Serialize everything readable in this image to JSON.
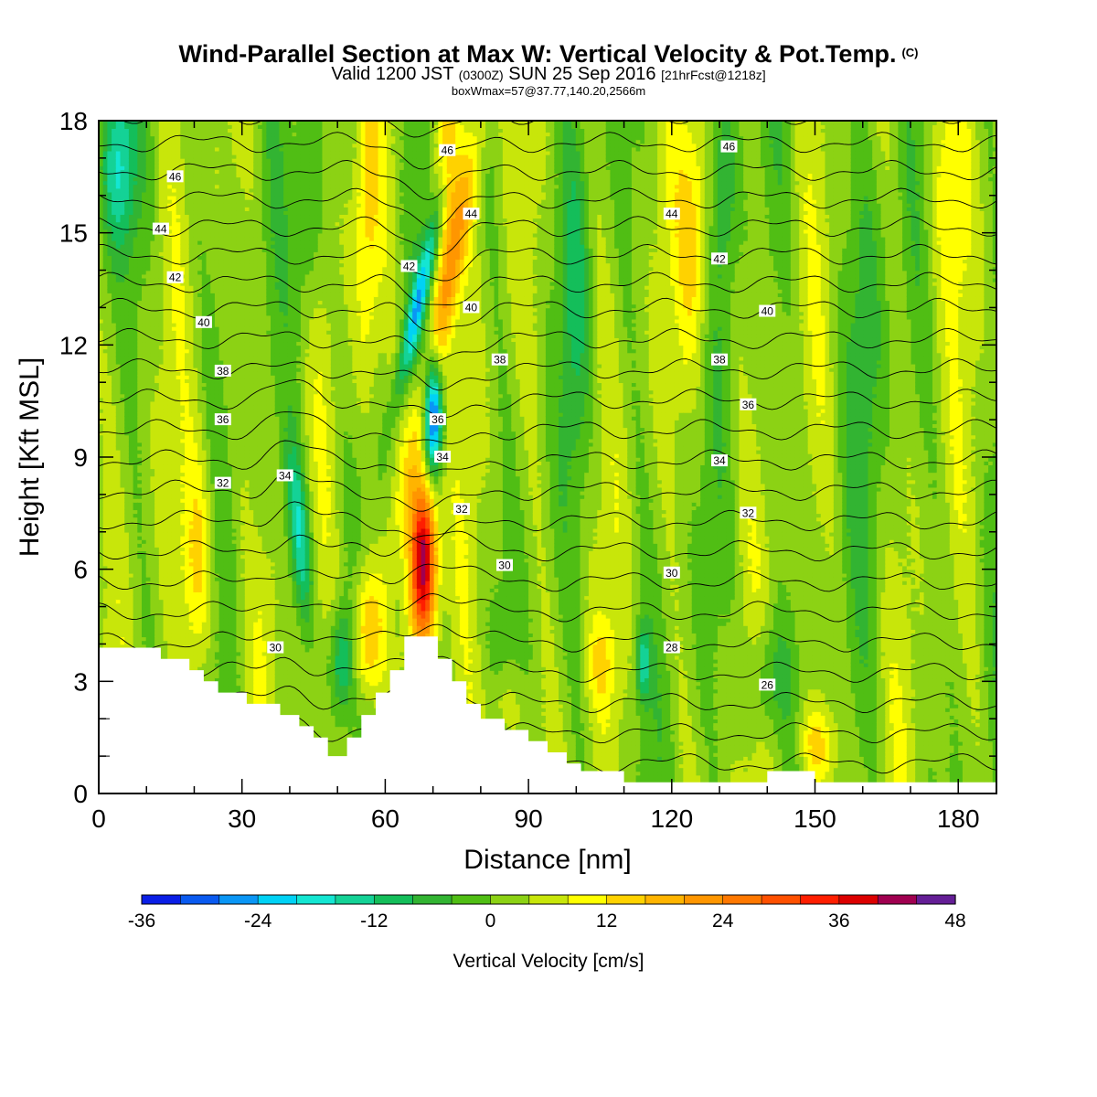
{
  "header": {
    "title": "Wind-Parallel Section at Max W: Vertical Velocity & Pot.Temp.",
    "copyright": "(C)",
    "valid_main": "Valid 1200 JST",
    "valid_zone": "(0300Z)",
    "valid_date": "SUN 25 Sep 2016",
    "valid_fcst": "[21hrFcst@1218z]",
    "box_info": "boxWmax=57@37.77,140.20,2566m"
  },
  "chart_data": {
    "type": "heatmap",
    "xlabel": "Distance [nm]",
    "ylabel": "Height [Kft MSL]",
    "xlim": [
      0,
      188
    ],
    "ylim": [
      0,
      18
    ],
    "x_ticks": [
      0,
      30,
      60,
      90,
      120,
      150,
      180
    ],
    "y_ticks": [
      0,
      3,
      6,
      9,
      12,
      15,
      18
    ],
    "field": "Vertical Velocity [cm/s]",
    "colorbar": {
      "title": "Vertical Velocity [cm/s]",
      "levels": [
        -36,
        -32,
        -28,
        -24,
        -20,
        -16,
        -12,
        -8,
        -4,
        0,
        4,
        8,
        12,
        16,
        20,
        24,
        28,
        32,
        36,
        40,
        44,
        48
      ],
      "tick_values": [
        -36,
        -24,
        -12,
        0,
        12,
        24,
        36,
        48
      ],
      "colors": [
        "#0a1ee6",
        "#0a5af0",
        "#0a96f5",
        "#00d2f5",
        "#14e6d2",
        "#14d296",
        "#14be5a",
        "#32b432",
        "#50be14",
        "#8cd214",
        "#c8e60a",
        "#ffff00",
        "#ffd200",
        "#ffb400",
        "#ff9600",
        "#ff7800",
        "#ff5000",
        "#ff1e00",
        "#dc0000",
        "#a00050",
        "#641e96"
      ],
      "position": "bottom"
    },
    "terrain_kft": [
      [
        0,
        3.9
      ],
      [
        7,
        3.9
      ],
      [
        13,
        3.9
      ],
      [
        13,
        3.6
      ],
      [
        19,
        3.6
      ],
      [
        19,
        3.3
      ],
      [
        22,
        3.3
      ],
      [
        22,
        3.0
      ],
      [
        25,
        3.0
      ],
      [
        25,
        2.7
      ],
      [
        31,
        2.7
      ],
      [
        31,
        2.4
      ],
      [
        38,
        2.4
      ],
      [
        38,
        2.1
      ],
      [
        42,
        2.1
      ],
      [
        42,
        1.8
      ],
      [
        45,
        1.8
      ],
      [
        45,
        1.5
      ],
      [
        48,
        1.5
      ],
      [
        48,
        1.0
      ],
      [
        52,
        1.0
      ],
      [
        52,
        1.5
      ],
      [
        55,
        1.5
      ],
      [
        55,
        2.1
      ],
      [
        58,
        2.1
      ],
      [
        58,
        2.7
      ],
      [
        61,
        2.7
      ],
      [
        61,
        3.3
      ],
      [
        64,
        3.3
      ],
      [
        64,
        4.2
      ],
      [
        71,
        4.2
      ],
      [
        71,
        3.6
      ],
      [
        74,
        3.6
      ],
      [
        74,
        3.0
      ],
      [
        77,
        3.0
      ],
      [
        77,
        2.4
      ],
      [
        80,
        2.4
      ],
      [
        80,
        2.0
      ],
      [
        85,
        2.0
      ],
      [
        85,
        1.7
      ],
      [
        90,
        1.7
      ],
      [
        90,
        1.4
      ],
      [
        94,
        1.4
      ],
      [
        94,
        1.1
      ],
      [
        98,
        1.1
      ],
      [
        98,
        0.8
      ],
      [
        101,
        0.8
      ],
      [
        101,
        0.6
      ],
      [
        110,
        0.6
      ],
      [
        110,
        0.3
      ],
      [
        140,
        0.3
      ],
      [
        140,
        0.6
      ],
      [
        150,
        0.6
      ],
      [
        150,
        0.3
      ],
      [
        188,
        0.3
      ]
    ],
    "updrafts": [
      {
        "x": 36,
        "y": 5.2,
        "w": 3,
        "sx": 2.2,
        "sy": 1.8,
        "tilt": 0
      },
      {
        "x": 21,
        "y": 6.2,
        "w": 12,
        "sx": 2.5,
        "sy": 2.2,
        "tilt": 0
      },
      {
        "x": 68,
        "y": 6.3,
        "w": 42,
        "sx": 2.0,
        "sy": 1.6,
        "tilt": 0
      },
      {
        "x": 72,
        "y": 13.0,
        "w": 16,
        "sx": 2.0,
        "sy": 4.0,
        "tilt": 1.6
      },
      {
        "x": 56,
        "y": 4.2,
        "w": 18,
        "sx": 2.5,
        "sy": 1.4,
        "tilt": 0
      },
      {
        "x": 73,
        "y": 17.0,
        "w": 14,
        "sx": 1.8,
        "sy": 2.2,
        "tilt": 0
      },
      {
        "x": 56,
        "y": 15.0,
        "w": 10,
        "sx": 2.0,
        "sy": 3.2,
        "tilt": 0
      },
      {
        "x": 125,
        "y": 15.0,
        "w": 12,
        "sx": 2.5,
        "sy": 2.5,
        "tilt": 0
      },
      {
        "x": 150,
        "y": 1.3,
        "w": 12,
        "sx": 3.0,
        "sy": 0.8,
        "tilt": 0
      },
      {
        "x": 85,
        "y": 2.2,
        "w": 8,
        "sx": 3.0,
        "sy": 0.8,
        "tilt": 0
      },
      {
        "x": 178,
        "y": 16.5,
        "w": 8,
        "sx": 3.0,
        "sy": 2.2,
        "tilt": 0
      },
      {
        "x": 105,
        "y": 3.5,
        "w": 8,
        "sx": 2.0,
        "sy": 0.8,
        "tilt": 0
      }
    ],
    "downdrafts": [
      {
        "x": 42,
        "y": 7.0,
        "w": -20,
        "sx": 1.5,
        "sy": 1.7,
        "tilt": -0.6
      },
      {
        "x": 70,
        "y": 10.2,
        "w": -34,
        "sx": 1.3,
        "sy": 1.1,
        "tilt": 0
      },
      {
        "x": 67,
        "y": 13.2,
        "w": -22,
        "sx": 1.2,
        "sy": 1.8,
        "tilt": 1.7
      },
      {
        "x": 51,
        "y": 3.6,
        "w": -16,
        "sx": 1.8,
        "sy": 1.0,
        "tilt": 0
      },
      {
        "x": 4,
        "y": 16.8,
        "w": -16,
        "sx": 2.5,
        "sy": 1.6,
        "tilt": 0
      },
      {
        "x": 114,
        "y": 3.5,
        "w": -16,
        "sx": 1.0,
        "sy": 0.7,
        "tilt": 0
      },
      {
        "x": 131,
        "y": 16.5,
        "w": -10,
        "sx": 2.0,
        "sy": 2.2,
        "tilt": 0
      },
      {
        "x": 100,
        "y": 13.5,
        "w": -8,
        "sx": 2.0,
        "sy": 3.0,
        "tilt": 0
      },
      {
        "x": 44,
        "y": 15.5,
        "w": -8,
        "sx": 2.0,
        "sy": 2.5,
        "tilt": 0
      },
      {
        "x": 140,
        "y": 3.0,
        "w": -10,
        "sx": 3.0,
        "sy": 1.2,
        "tilt": 0
      },
      {
        "x": 161,
        "y": 13.0,
        "w": -6,
        "sx": 3.0,
        "sy": 4.0,
        "tilt": 0
      }
    ],
    "theta_levels": [
      26,
      28,
      30,
      32,
      34,
      36,
      38,
      40,
      42,
      44,
      46
    ],
    "theta_labels": [
      {
        "value": "46",
        "x": 16,
        "y": 16.5
      },
      {
        "value": "46",
        "x": 73,
        "y": 17.2
      },
      {
        "value": "46",
        "x": 132,
        "y": 17.3
      },
      {
        "value": "44",
        "x": 13,
        "y": 15.1
      },
      {
        "value": "44",
        "x": 78,
        "y": 15.5
      },
      {
        "value": "44",
        "x": 120,
        "y": 15.5
      },
      {
        "value": "42",
        "x": 16,
        "y": 13.8
      },
      {
        "value": "42",
        "x": 65,
        "y": 14.1
      },
      {
        "value": "42",
        "x": 130,
        "y": 14.3
      },
      {
        "value": "40",
        "x": 22,
        "y": 12.6
      },
      {
        "value": "40",
        "x": 78,
        "y": 13.0
      },
      {
        "value": "40",
        "x": 140,
        "y": 12.9
      },
      {
        "value": "38",
        "x": 26,
        "y": 11.3
      },
      {
        "value": "38",
        "x": 84,
        "y": 11.6
      },
      {
        "value": "38",
        "x": 130,
        "y": 11.6
      },
      {
        "value": "36",
        "x": 26,
        "y": 10.0
      },
      {
        "value": "36",
        "x": 71,
        "y": 10.0
      },
      {
        "value": "36",
        "x": 136,
        "y": 10.4
      },
      {
        "value": "34",
        "x": 39,
        "y": 8.5
      },
      {
        "value": "34",
        "x": 72,
        "y": 9.0
      },
      {
        "value": "34",
        "x": 130,
        "y": 8.9
      },
      {
        "value": "32",
        "x": 26,
        "y": 8.3
      },
      {
        "value": "32",
        "x": 76,
        "y": 7.6
      },
      {
        "value": "32",
        "x": 136,
        "y": 7.5
      },
      {
        "value": "30",
        "x": 85,
        "y": 6.1
      },
      {
        "value": "30",
        "x": 120,
        "y": 5.9
      },
      {
        "value": "30",
        "x": 37,
        "y": 3.9
      },
      {
        "value": "28",
        "x": 120,
        "y": 3.9
      },
      {
        "value": "26",
        "x": 140,
        "y": 2.9
      }
    ]
  }
}
